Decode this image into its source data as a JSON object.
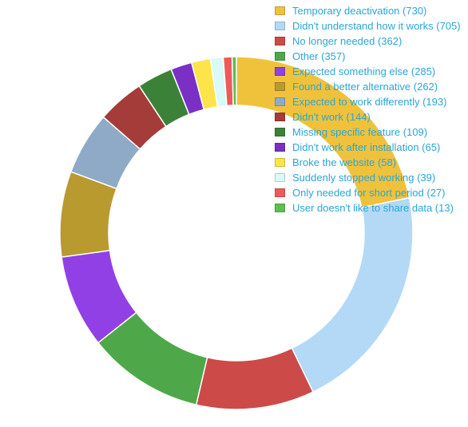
{
  "chart_data": {
    "type": "pie",
    "donut": true,
    "legend_position": "top-right",
    "slices": [
      {
        "label": "Temporary deactivation",
        "value": 730,
        "legend": "Temporary deactivation (730)",
        "color": "#f0c23c"
      },
      {
        "label": "Didn't understand how it works",
        "value": 705,
        "legend": "Didn't understand how it works (705)",
        "color": "#b3d9f6"
      },
      {
        "label": "No longer needed",
        "value": 362,
        "legend": "No longer needed (362)",
        "color": "#cc4a48"
      },
      {
        "label": "Other",
        "value": 357,
        "legend": "Other (357)",
        "color": "#4ea84a"
      },
      {
        "label": "Expected something else",
        "value": 285,
        "legend": "Expected something else (285)",
        "color": "#9140e6"
      },
      {
        "label": "Found a better alternative",
        "value": 262,
        "legend": "Found a better alternative (262)",
        "color": "#b89a2e"
      },
      {
        "label": "Expected to work differently",
        "value": 193,
        "legend": "Expected to work differently (193)",
        "color": "#8eaac6"
      },
      {
        "label": "Didn't work",
        "value": 144,
        "legend": "Didn't work (144)",
        "color": "#a43c3a"
      },
      {
        "label": "Missing specific feature",
        "value": 109,
        "legend": "Missing specific feature (109)",
        "color": "#3b8238"
      },
      {
        "label": "Didn't work after installation",
        "value": 65,
        "legend": "Didn't work after installation (65)",
        "color": "#7a30c4"
      },
      {
        "label": "Broke the website",
        "value": 58,
        "legend": "Broke the website (58)",
        "color": "#fce44a"
      },
      {
        "label": "Suddenly stopped working",
        "value": 39,
        "legend": "Suddenly stopped working (39)",
        "color": "#d8faf8"
      },
      {
        "label": "Only needed for short period",
        "value": 27,
        "legend": "Only needed for short period (27)",
        "color": "#ee5a5a"
      },
      {
        "label": "User doesn't like to share data",
        "value": 13,
        "legend": "User doesn't like to share data (13)",
        "color": "#5cc050"
      }
    ]
  }
}
